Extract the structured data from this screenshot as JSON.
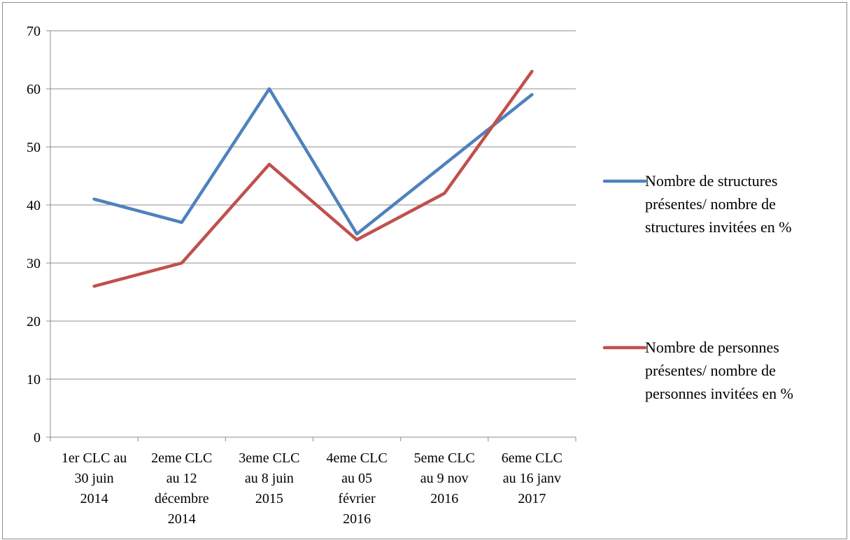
{
  "chart_data": {
    "type": "line",
    "categories": [
      [
        "1er CLC au",
        "30 juin",
        "2014"
      ],
      [
        "2eme CLC",
        "au 12",
        "décembre",
        "2014"
      ],
      [
        "3eme CLC",
        "au 8 juin",
        "2015"
      ],
      [
        "4eme CLC",
        "au 05",
        "février",
        "2016"
      ],
      [
        "5eme CLC",
        "au 9 nov",
        "2016"
      ],
      [
        "6eme CLC",
        "au 16 janv",
        "2017"
      ]
    ],
    "series": [
      {
        "name": [
          "Nombre de structures",
          "présentes/ nombre de",
          "structures invitées en %"
        ],
        "values": [
          41,
          37,
          60,
          35,
          47,
          59
        ],
        "color": "#4f81bd"
      },
      {
        "name": [
          "Nombre de personnes",
          "présentes/ nombre de",
          "personnes invitées en %"
        ],
        "values": [
          26,
          30,
          47,
          34,
          42,
          63
        ],
        "color": "#c0504d"
      }
    ],
    "yticks": [
      "0",
      "10",
      "20",
      "30",
      "40",
      "50",
      "60",
      "70"
    ],
    "ylim": [
      0,
      70
    ],
    "grid": true,
    "legend_position": "right",
    "title": "",
    "xlabel": "",
    "ylabel": ""
  }
}
